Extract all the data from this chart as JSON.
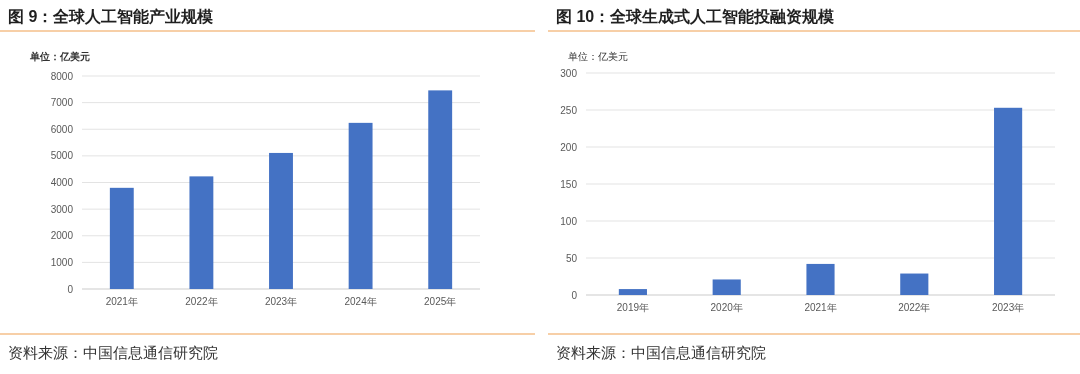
{
  "chart_data": [
    {
      "type": "bar",
      "title": "图 9：全球人工智能产业规模",
      "ylabel": "单位：亿美元",
      "categories": [
        "2021年",
        "2022年",
        "2023年",
        "2024年",
        "2025年"
      ],
      "values": [
        3800,
        4230,
        5110,
        6240,
        7460
      ],
      "color": "#4472c4",
      "ylim": [
        0,
        8000
      ],
      "yticks": [
        0,
        1000,
        2000,
        3000,
        4000,
        5000,
        6000,
        7000,
        8000
      ],
      "grid": "y",
      "annotations": [
        "资料来源：中国信息通信研究院"
      ]
    },
    {
      "type": "bar",
      "title": "图 10：全球生成式人工智能投融资规模",
      "ylabel": "单位：亿美元",
      "categories": [
        "2019年",
        "2020年",
        "2021年",
        "2022年",
        "2023年"
      ],
      "values": [
        8,
        21,
        42,
        29,
        253
      ],
      "color": "#4472c4",
      "ylim": [
        0,
        300
      ],
      "yticks": [
        0,
        50,
        100,
        150,
        200,
        250,
        300
      ],
      "grid": "y",
      "annotations": [
        "资料来源：中国信息通信研究院"
      ]
    }
  ]
}
